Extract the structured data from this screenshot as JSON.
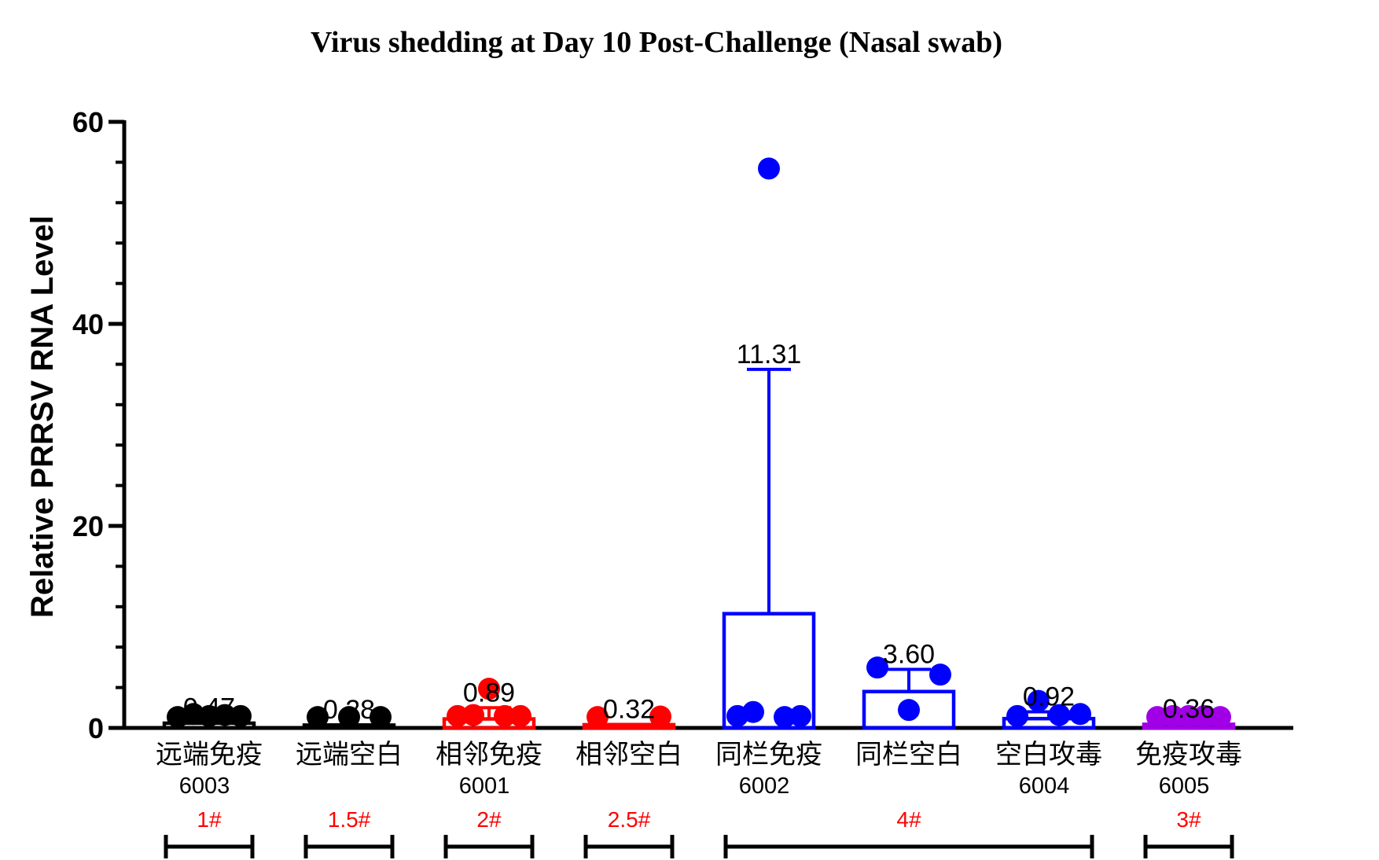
{
  "chart_data": {
    "type": "bar",
    "title": "Virus shedding at Day 10 Post-Challenge (Nasal swab)",
    "ylabel": "Relative PRRSV RNA Level",
    "xlabel": "",
    "ylim": [
      0,
      60
    ],
    "yticks": [
      0,
      20,
      40,
      60
    ],
    "categories": [
      "远端免疫",
      "远端空白",
      "相邻免疫",
      "相邻空白",
      "同栏免疫",
      "同栏空白",
      "空白攻毒",
      "免疫攻毒"
    ],
    "sublabels": [
      "6003",
      "",
      "6001",
      "",
      "6002",
      "",
      "6004",
      "6005"
    ],
    "values": [
      0.47,
      0.28,
      0.89,
      0.32,
      11.31,
      3.6,
      0.92,
      0.36
    ],
    "value_labels": [
      "0.47",
      "0.28",
      "0.89",
      "0.32",
      "11.31",
      "3.60",
      "0.92",
      "0.36"
    ],
    "error_upper": [
      0.5,
      0.3,
      2.0,
      0.35,
      35.5,
      5.8,
      1.6,
      0.4
    ],
    "colors": [
      "#000000",
      "#000000",
      "#ff0000",
      "#ff0000",
      "#0000ff",
      "#0000ff",
      "#0000ff",
      "#a100e6"
    ],
    "points": [
      [
        0.3,
        0.6,
        0.4,
        0.5,
        0.4
      ],
      [
        0.3,
        0.3,
        0.3
      ],
      [
        0.4,
        0.5,
        3.1,
        0.4,
        0.4
      ],
      [
        0.3,
        0.35
      ],
      [
        0.4,
        0.8,
        54.6,
        0.3,
        0.4
      ],
      [
        5.2,
        1.0,
        4.5
      ],
      [
        0.4,
        1.9,
        0.5,
        0.6
      ],
      [
        0.3,
        0.4,
        0.4,
        0.4,
        0.3
      ]
    ],
    "groups": [
      {
        "label": "1#",
        "from": 0,
        "to": 0
      },
      {
        "label": "1.5#",
        "from": 1,
        "to": 1
      },
      {
        "label": "2#",
        "from": 2,
        "to": 2
      },
      {
        "label": "2.5#",
        "from": 3,
        "to": 3
      },
      {
        "label": "4#",
        "from": 4,
        "to": 6
      },
      {
        "label": "3#",
        "from": 7,
        "to": 7
      }
    ],
    "grid": false,
    "legend": "none"
  }
}
